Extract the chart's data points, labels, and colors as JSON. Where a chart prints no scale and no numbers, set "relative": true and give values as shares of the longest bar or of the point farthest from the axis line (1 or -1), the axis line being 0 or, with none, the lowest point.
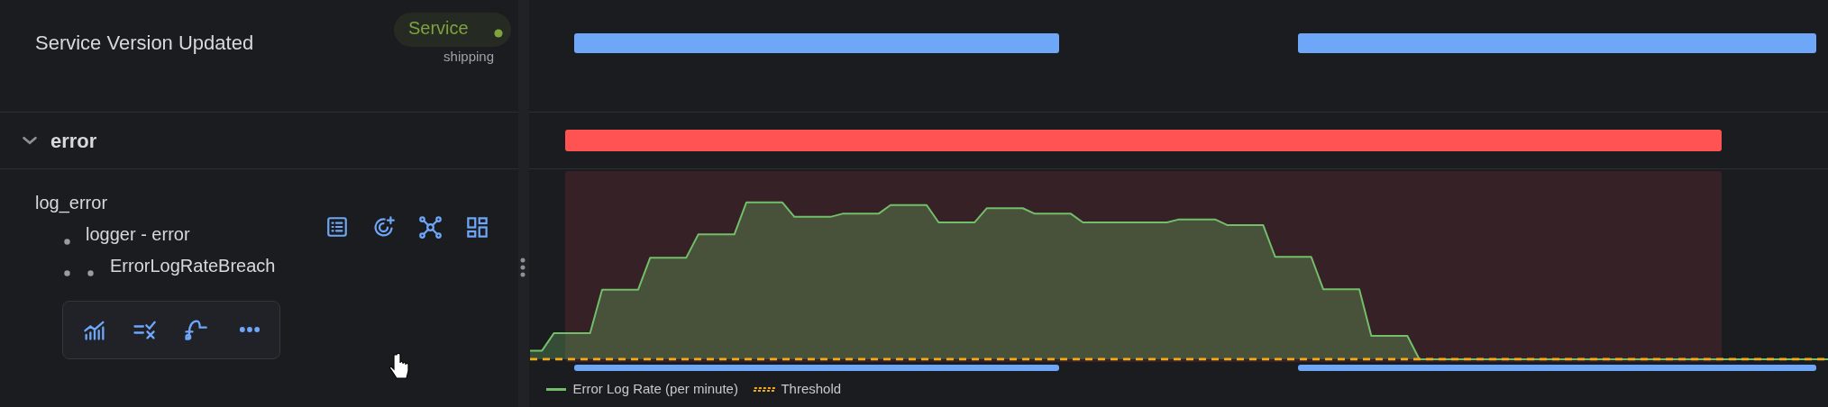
{
  "chart_data": {
    "type": "area",
    "relative": true,
    "legend": "bottom left",
    "categories": [
      null,
      null,
      null,
      null,
      null,
      null,
      null,
      null,
      null,
      null,
      null,
      null,
      null,
      null,
      null,
      null,
      null,
      null,
      null,
      null,
      null,
      null,
      null,
      null,
      null,
      null,
      null,
      null,
      null,
      null,
      null,
      null,
      null,
      null,
      null,
      null,
      null,
      null,
      null,
      null,
      null,
      null,
      null,
      null,
      null,
      null,
      null,
      null,
      null,
      null,
      null,
      null,
      null,
      null,
      null,
      null,
      null,
      null,
      null,
      null,
      null,
      null,
      null,
      null,
      null,
      null,
      null,
      null,
      null,
      null,
      null,
      null,
      null,
      null,
      null,
      null,
      null,
      null,
      null,
      null,
      null,
      null,
      null,
      null,
      null,
      null,
      null,
      null,
      null,
      null,
      null,
      null,
      null,
      null,
      null,
      null,
      null,
      null,
      null,
      null,
      null,
      null,
      null,
      null,
      null,
      null,
      null,
      null,
      null
    ],
    "series": [
      {
        "name": "Error Log Rate (per minute)",
        "color": "#73bf69",
        "values": [
          0.055,
          0.055,
          0.167,
          0.167,
          0.167,
          0.167,
          0.444,
          0.444,
          0.444,
          0.444,
          0.648,
          0.648,
          0.648,
          0.648,
          0.796,
          0.796,
          0.796,
          0.796,
          1,
          1,
          1,
          1,
          0.908,
          0.908,
          0.908,
          0.908,
          0.928,
          0.928,
          0.928,
          0.928,
          0.983,
          0.983,
          0.983,
          0.983,
          0.873,
          0.873,
          0.873,
          0.873,
          0.963,
          0.963,
          0.963,
          0.963,
          0.928,
          0.928,
          0.928,
          0.928,
          0.873,
          0.873,
          0.873,
          0.873,
          0.873,
          0.873,
          0.873,
          0.873,
          0.892,
          0.892,
          0.892,
          0.892,
          0.856,
          0.856,
          0.856,
          0.856,
          0.653,
          0.653,
          0.653,
          0.653,
          0.447,
          0.447,
          0.447,
          0.447,
          0.149,
          0.149,
          0.149,
          0.149,
          0,
          0,
          0,
          0,
          0,
          0,
          0,
          0,
          0,
          0,
          0,
          0,
          0,
          0,
          0,
          0,
          0,
          0,
          0,
          0,
          0,
          0,
          0,
          0,
          0,
          0,
          0,
          0,
          0,
          0,
          0,
          0,
          0,
          0,
          0
        ]
      },
      {
        "name": "Threshold",
        "type": "line",
        "color": "#f2a91a",
        "line_style": "dashed",
        "values": [
          0,
          0,
          0,
          0,
          0,
          0,
          0,
          0,
          0,
          0,
          0,
          0,
          0,
          0,
          0,
          0,
          0,
          0,
          0,
          0,
          0,
          0,
          0,
          0,
          0,
          0,
          0,
          0,
          0,
          0,
          0,
          0,
          0,
          0,
          0,
          0,
          0,
          0,
          0,
          0,
          0,
          0,
          0,
          0,
          0,
          0,
          0,
          0,
          0,
          0,
          0,
          0,
          0,
          0,
          0,
          0,
          0,
          0,
          0,
          0,
          0,
          0,
          0,
          0,
          0,
          0,
          0,
          0,
          0,
          0,
          0,
          0,
          0,
          0,
          0,
          0,
          0,
          0,
          0,
          0,
          0,
          0,
          0,
          0,
          0,
          0,
          0,
          0,
          0,
          0,
          0,
          0,
          0,
          0,
          0,
          0,
          0,
          0,
          0,
          0,
          0,
          0,
          0,
          0,
          0,
          0,
          0,
          0,
          0
        ]
      }
    ],
    "annotations": [
      "Service Version Updated",
      "Service",
      "shipping",
      "error",
      "log_error",
      "logger - error",
      "ErrorLogRateBreach"
    ]
  }
}
